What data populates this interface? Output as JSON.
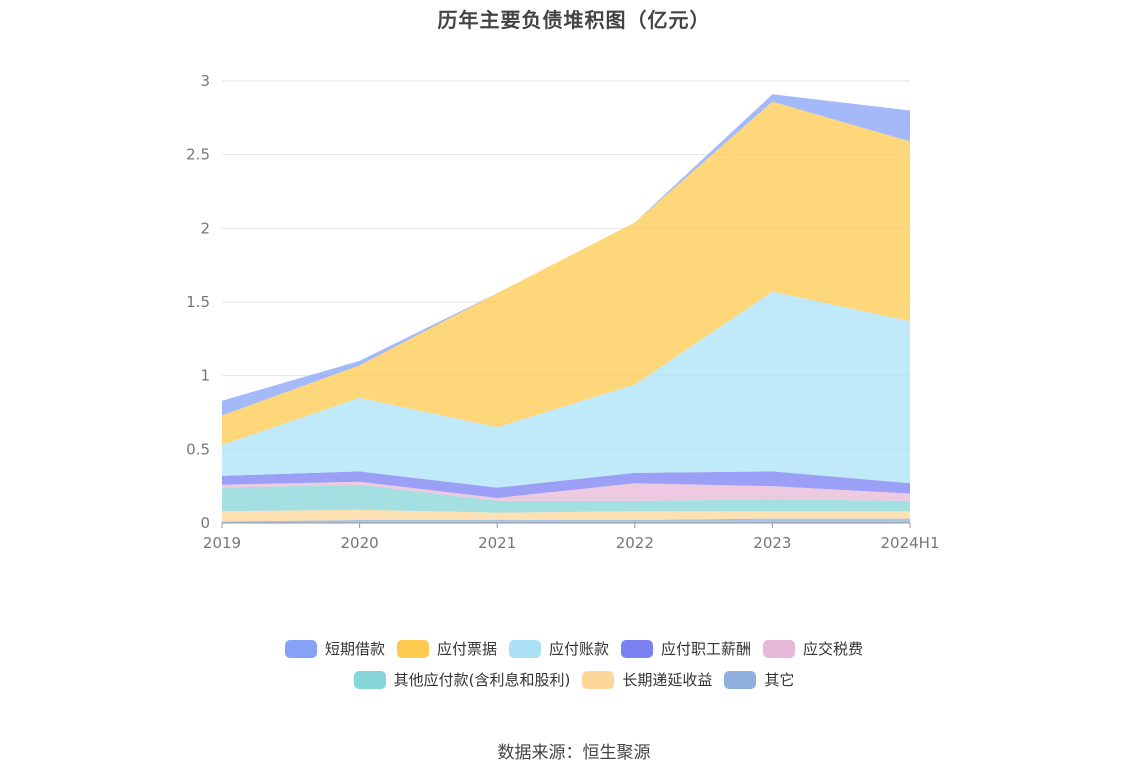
{
  "chart_data": {
    "type": "area",
    "stacked": true,
    "title": "历年主要负债堆积图（亿元）",
    "categories": [
      "2019",
      "2020",
      "2021",
      "2022",
      "2023",
      "2024H1"
    ],
    "ylim": [
      0,
      3
    ],
    "yticks": [
      "0",
      "0.5",
      "1",
      "1.5",
      "2",
      "2.5",
      "3"
    ],
    "grid": true,
    "legend_position": "bottom",
    "series": [
      {
        "name": "其它",
        "color": "#8eaedc",
        "values": [
          0.01,
          0.02,
          0.02,
          0.02,
          0.03,
          0.03
        ]
      },
      {
        "name": "长期递延收益",
        "color": "#fdd79a",
        "values": [
          0.07,
          0.07,
          0.05,
          0.06,
          0.05,
          0.05
        ]
      },
      {
        "name": "其他应付款(含利息和股利)",
        "color": "#86d5d8",
        "values": [
          0.16,
          0.17,
          0.08,
          0.07,
          0.08,
          0.07
        ]
      },
      {
        "name": "应交税费",
        "color": "#e8b8d8",
        "values": [
          0.02,
          0.02,
          0.02,
          0.12,
          0.09,
          0.05
        ]
      },
      {
        "name": "应付职工薪酬",
        "color": "#7a7ff2",
        "values": [
          0.06,
          0.07,
          0.07,
          0.07,
          0.1,
          0.07
        ]
      },
      {
        "name": "应付账款",
        "color": "#abe1f7",
        "values": [
          0.21,
          0.5,
          0.41,
          0.6,
          1.22,
          1.1
        ]
      },
      {
        "name": "应付票据",
        "color": "#fdc94e",
        "values": [
          0.2,
          0.22,
          0.91,
          1.1,
          1.29,
          1.22
        ]
      },
      {
        "name": "短期借款",
        "color": "#86a2f7",
        "values": [
          0.1,
          0.03,
          0.0,
          0.0,
          0.05,
          0.21
        ]
      }
    ]
  },
  "legend": {
    "row1": [
      {
        "label": "短期借款",
        "color": "#86a2f7"
      },
      {
        "label": "应付票据",
        "color": "#fdc94e"
      },
      {
        "label": "应付账款",
        "color": "#abe1f7"
      },
      {
        "label": "应付职工薪酬",
        "color": "#7a7ff2"
      },
      {
        "label": "应交税费",
        "color": "#e8b8d8"
      }
    ],
    "row2": [
      {
        "label": "其他应付款(含利息和股利)",
        "color": "#86d5d8"
      },
      {
        "label": "长期递延收益",
        "color": "#fdd79a"
      },
      {
        "label": "其它",
        "color": "#8eaedc"
      }
    ]
  },
  "source": "数据来源：恒生聚源"
}
